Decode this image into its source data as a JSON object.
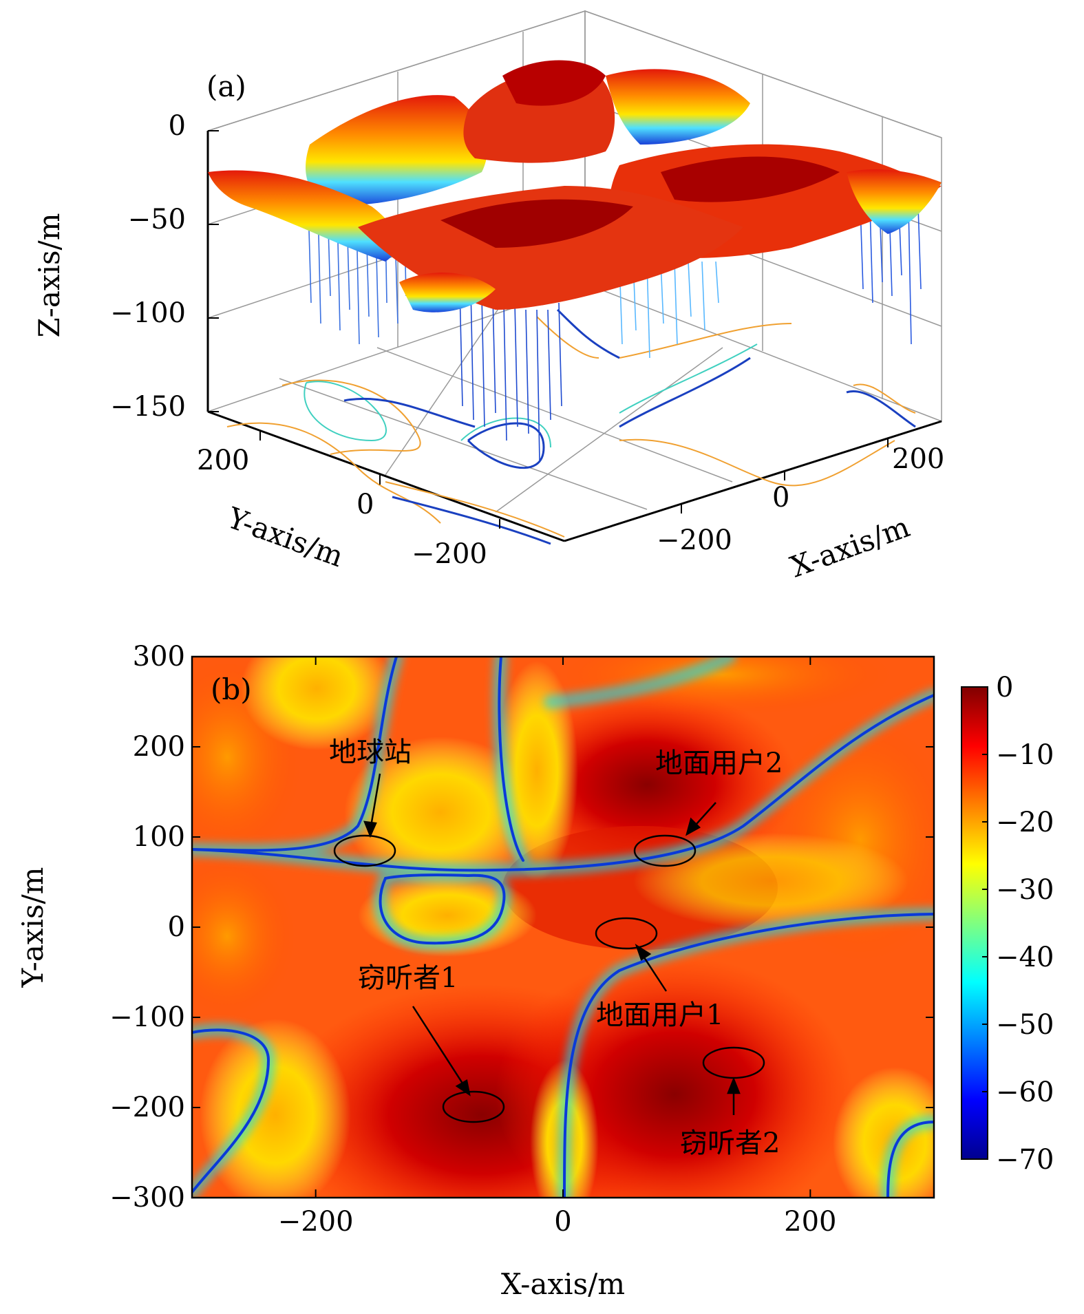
{
  "chart_data": [
    {
      "type": "surface",
      "panel_label": "(a)",
      "xlabel": "X-axis/m",
      "ylabel": "Y-axis/m",
      "zlabel": "Z-axis/m",
      "xticks": [
        "−200",
        "0",
        "200"
      ],
      "yticks": [
        "−200",
        "0",
        "200"
      ],
      "zticks": [
        "0",
        "−50",
        "−100",
        "−150"
      ],
      "xlim": [
        -300,
        300
      ],
      "ylim": [
        -300,
        300
      ],
      "zlim": [
        -150,
        0
      ],
      "colormap": "jet",
      "contour_projection": true,
      "grid": true
    },
    {
      "type": "heatmap",
      "panel_label": "(b)",
      "xlabel": "X-axis/m",
      "ylabel": "Y-axis/m",
      "xlim": [
        -300,
        300
      ],
      "ylim": [
        -300,
        300
      ],
      "xticks": [
        {
          "value": -200,
          "label": "−200"
        },
        {
          "value": 0,
          "label": "0"
        },
        {
          "value": 200,
          "label": "200"
        }
      ],
      "yticks": [
        {
          "value": 300,
          "label": "300"
        },
        {
          "value": 200,
          "label": "200"
        },
        {
          "value": 100,
          "label": "100"
        },
        {
          "value": 0,
          "label": "0"
        },
        {
          "value": -100,
          "label": "−100"
        },
        {
          "value": -200,
          "label": "−200"
        },
        {
          "value": -300,
          "label": "−300"
        }
      ],
      "colorbar": {
        "range": [
          -70,
          0
        ],
        "ticks": [
          {
            "value": 0,
            "label": "0"
          },
          {
            "value": -10,
            "label": "−10"
          },
          {
            "value": -20,
            "label": "−20"
          },
          {
            "value": -30,
            "label": "−30"
          },
          {
            "value": -40,
            "label": "−40"
          },
          {
            "value": -50,
            "label": "−50"
          },
          {
            "value": -60,
            "label": "−60"
          },
          {
            "value": -70,
            "label": "−70"
          }
        ]
      },
      "annotations": [
        {
          "label": "地球站",
          "x": -162,
          "y": 86
        },
        {
          "label": "地面用户2",
          "x": 83,
          "y": 88
        },
        {
          "label": "地面用户1",
          "x": 50,
          "y": -8
        },
        {
          "label": "窃听者1",
          "x": -75,
          "y": -200
        },
        {
          "label": "窃听者2",
          "x": 137,
          "y": -150
        }
      ]
    }
  ]
}
